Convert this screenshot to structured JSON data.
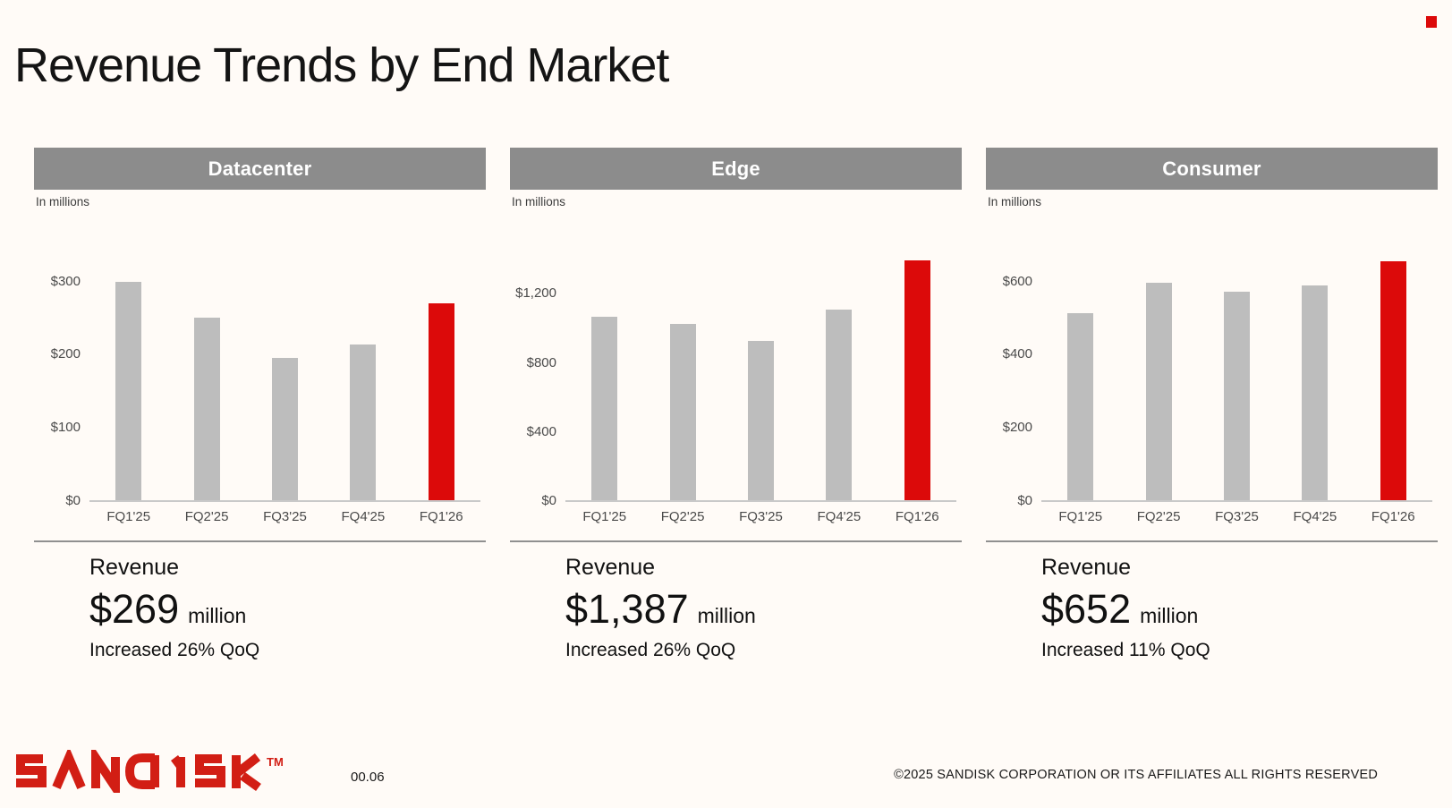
{
  "slide": {
    "title": "Revenue Trends by End Market",
    "page_number": "00.06",
    "copyright": "©2025 SANDISK CORPORATION OR ITS AFFILIATES ALL RIGHTS RESERVED",
    "logo_text": "SANDISK™"
  },
  "colors": {
    "background": "#FFFBF7",
    "accent_red": "#DC0A0A",
    "bar_gray": "#BDBDBD",
    "header_gray": "#8C8C8C",
    "logo_red": "#D21E14"
  },
  "chart_data": [
    {
      "type": "bar",
      "title": "Datacenter",
      "units_label": "In millions",
      "categories": [
        "FQ1'25",
        "FQ2'25",
        "FQ3'25",
        "FQ4'25",
        "FQ1'26"
      ],
      "values": [
        298,
        250,
        195,
        213,
        269
      ],
      "highlight_index": 4,
      "highlight_color": "#DC0A0A",
      "bar_color": "#BDBDBD",
      "yticks": [
        0,
        100,
        200,
        300
      ],
      "ytick_labels": [
        "$0",
        "$100",
        "$200",
        "$300"
      ],
      "ylim": [
        0,
        340
      ],
      "grid": false,
      "legend": "none",
      "summary": {
        "label": "Revenue",
        "value": "$269",
        "unit": "million",
        "change": "Increased 26% QoQ"
      }
    },
    {
      "type": "bar",
      "title": "Edge",
      "units_label": "In millions",
      "categories": [
        "FQ1'25",
        "FQ2'25",
        "FQ3'25",
        "FQ4'25",
        "FQ1'26"
      ],
      "values": [
        1060,
        1020,
        920,
        1101,
        1387
      ],
      "highlight_index": 4,
      "highlight_color": "#DC0A0A",
      "bar_color": "#BDBDBD",
      "yticks": [
        0,
        400,
        800,
        1200
      ],
      "ytick_labels": [
        "$0",
        "$400",
        "$800",
        "$1,200"
      ],
      "ylim": [
        0,
        1440
      ],
      "grid": false,
      "legend": "none",
      "summary": {
        "label": "Revenue",
        "value": "$1,387",
        "unit": "million",
        "change": "Increased 26% QoQ"
      }
    },
    {
      "type": "bar",
      "title": "Consumer",
      "units_label": "In millions",
      "categories": [
        "FQ1'25",
        "FQ2'25",
        "FQ3'25",
        "FQ4'25",
        "FQ1'26"
      ],
      "values": [
        510,
        595,
        570,
        587,
        652
      ],
      "highlight_index": 4,
      "highlight_color": "#DC0A0A",
      "bar_color": "#BDBDBD",
      "yticks": [
        0,
        200,
        400,
        600
      ],
      "ytick_labels": [
        "$0",
        "$200",
        "$400",
        "$600"
      ],
      "ylim": [
        0,
        680
      ],
      "grid": false,
      "legend": "none",
      "summary": {
        "label": "Revenue",
        "value": "$652",
        "unit": "million",
        "change": "Increased 11% QoQ"
      }
    }
  ]
}
